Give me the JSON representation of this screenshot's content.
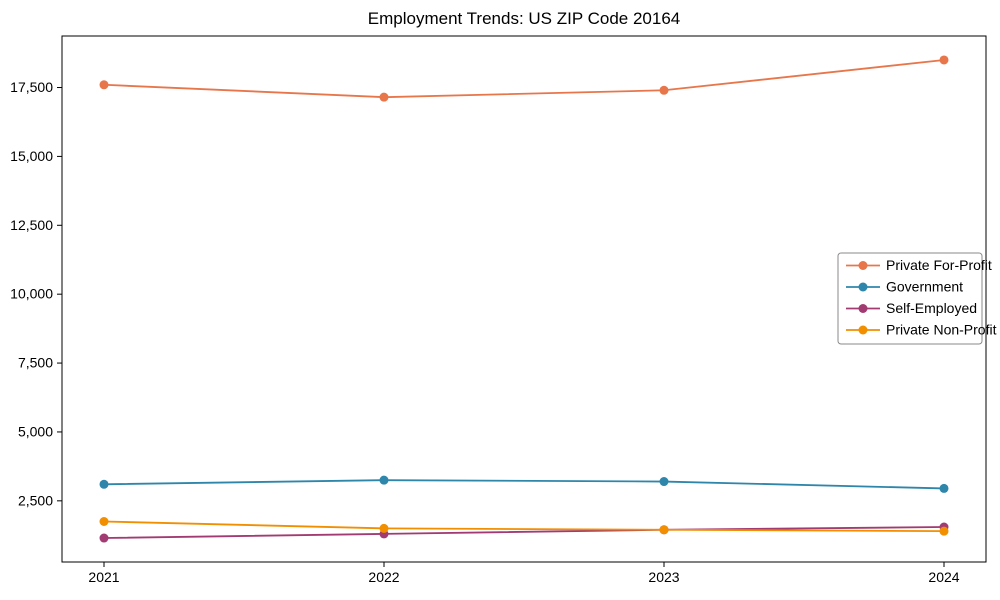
{
  "chart_data": {
    "type": "line",
    "title": "Employment Trends: US ZIP Code 20164",
    "x": [
      2021,
      2022,
      2023,
      2024
    ],
    "x_tick_labels": [
      "2021",
      "2022",
      "2023",
      "2024"
    ],
    "xlim": [
      2020.85,
      2024.15
    ],
    "y_ticks": [
      2500,
      5000,
      7500,
      10000,
      12500,
      15000,
      17500
    ],
    "y_tick_labels": [
      "2,500",
      "5,000",
      "7,500",
      "10,000",
      "12,500",
      "15,000",
      "17,500"
    ],
    "ylim": [
      280,
      19370
    ],
    "grid": false,
    "marker": "circle",
    "legend_position": "center right",
    "series": [
      {
        "name": "Private For-Profit",
        "color": "#E8764B",
        "values": [
          17600,
          17150,
          17400,
          18500
        ]
      },
      {
        "name": "Government",
        "color": "#2E86AB",
        "values": [
          3100,
          3250,
          3200,
          2950
        ]
      },
      {
        "name": "Self-Employed",
        "color": "#A23B72",
        "values": [
          1150,
          1300,
          1450,
          1550
        ]
      },
      {
        "name": "Private Non-Profit",
        "color": "#F18F01",
        "values": [
          1750,
          1500,
          1450,
          1400
        ]
      }
    ],
    "xlabel": "",
    "ylabel": ""
  },
  "legend": {
    "labels": [
      "Private For-Profit",
      "Government",
      "Self-Employed",
      "Private Non-Profit"
    ]
  },
  "colors": {
    "background": "#ffffff",
    "axis_frame": "#000000",
    "tick_text": "#000000",
    "legend_border": "#8a8a8a",
    "legend_background": "#ffffff"
  }
}
